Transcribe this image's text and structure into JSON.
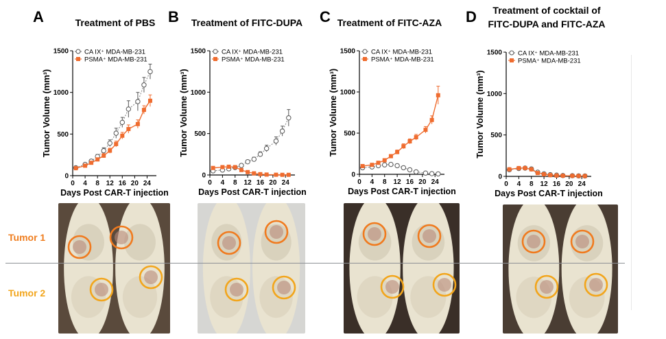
{
  "colors": {
    "orange": "#ef6c2f",
    "orange_ring": "#f07a1e",
    "yellow_ring": "#f2a51b",
    "gray_marker": "#8a8a8a",
    "tumor1_label": "#ef7d1e",
    "tumor2_label": "#f2a51b"
  },
  "panels": [
    {
      "letter": "A",
      "title_lines": [
        "Treatment of PBS"
      ]
    },
    {
      "letter": "B",
      "title_lines": [
        "Treatment of FITC-DUPA"
      ]
    },
    {
      "letter": "C",
      "title_lines": [
        "Treatment of FITC-AZA"
      ]
    },
    {
      "letter": "D",
      "title_lines": [
        "Treatment of cocktail of",
        "FITC-DUPA and FITC-AZA"
      ]
    }
  ],
  "tumor_labels": {
    "tumor1": "Tumor 1",
    "tumor2": "Tumor 2"
  },
  "chart_data": [
    {
      "type": "line",
      "title": "Treatment of PBS",
      "xlabel": "Days Post CAR-T injection",
      "ylabel": "Tumor Volume (mm³)",
      "xlim": [
        0,
        27
      ],
      "ylim": [
        0,
        1500
      ],
      "xticks": [
        0,
        4,
        8,
        12,
        16,
        20,
        24
      ],
      "yticks": [
        0,
        500,
        1000,
        1500
      ],
      "legend_position": "top-left",
      "series": [
        {
          "name": "CA IX⁺ MDA-MB-231",
          "marker": "open-circle",
          "line": "dotted",
          "x": [
            1,
            4,
            6,
            8,
            10,
            12,
            14,
            16,
            18,
            21,
            23,
            25
          ],
          "y": [
            95,
            135,
            175,
            230,
            300,
            390,
            510,
            640,
            800,
            890,
            1090,
            1250
          ],
          "err": [
            15,
            15,
            20,
            25,
            35,
            40,
            60,
            60,
            100,
            110,
            90,
            90
          ]
        },
        {
          "name": "PSMA⁺ MDA-MB-231",
          "marker": "filled-square",
          "line": "solid",
          "x": [
            1,
            4,
            6,
            8,
            10,
            12,
            14,
            16,
            18,
            21,
            23,
            25
          ],
          "y": [
            90,
            120,
            155,
            195,
            240,
            300,
            380,
            480,
            560,
            620,
            790,
            900
          ],
          "err": [
            10,
            15,
            15,
            20,
            25,
            30,
            35,
            40,
            50,
            50,
            50,
            70
          ]
        }
      ]
    },
    {
      "type": "line",
      "title": "Treatment of FITC-DUPA",
      "xlabel": "Days Post CAR-T injection",
      "ylabel": "Tumor Volume (mm³)",
      "xlim": [
        0,
        27
      ],
      "ylim": [
        0,
        1500
      ],
      "xticks": [
        0,
        4,
        8,
        12,
        16,
        20,
        24
      ],
      "yticks": [
        0,
        500,
        1000,
        1500
      ],
      "legend_position": "top-left",
      "series": [
        {
          "name": "CA IX⁺ MDA-MB-231",
          "marker": "open-circle",
          "line": "dotted",
          "x": [
            1,
            4,
            6,
            8,
            10,
            12,
            14,
            16,
            18,
            21,
            23,
            25
          ],
          "y": [
            50,
            60,
            75,
            90,
            115,
            160,
            190,
            250,
            320,
            410,
            530,
            690
          ],
          "err": [
            10,
            10,
            10,
            15,
            15,
            20,
            25,
            30,
            40,
            50,
            60,
            100
          ]
        },
        {
          "name": "PSMA⁺ MDA-MB-231",
          "marker": "filled-square",
          "line": "solid",
          "x": [
            1,
            4,
            6,
            8,
            10,
            12,
            14,
            16,
            18,
            21,
            23,
            25
          ],
          "y": [
            85,
            95,
            100,
            95,
            60,
            35,
            20,
            10,
            5,
            3,
            2,
            2
          ],
          "err": [
            10,
            10,
            10,
            10,
            8,
            5,
            4,
            3,
            2,
            1,
            1,
            1
          ]
        }
      ]
    },
    {
      "type": "line",
      "title": "Treatment of FITC-AZA",
      "xlabel": "Days Post CAR-T injection",
      "ylabel": "Tumor Volume (mm³)",
      "xlim": [
        0,
        27
      ],
      "ylim": [
        0,
        1500
      ],
      "xticks": [
        0,
        4,
        8,
        12,
        16,
        20,
        24
      ],
      "yticks": [
        0,
        500,
        1000,
        1500
      ],
      "legend_position": "top-left",
      "series": [
        {
          "name": "CA IX⁺ MDA-MB-231",
          "marker": "open-circle",
          "line": "dotted",
          "x": [
            1,
            4,
            6,
            8,
            10,
            12,
            14,
            16,
            18,
            21,
            23,
            25
          ],
          "y": [
            80,
            90,
            105,
            115,
            120,
            105,
            80,
            55,
            30,
            15,
            8,
            5
          ],
          "err": [
            10,
            10,
            10,
            10,
            10,
            10,
            8,
            6,
            5,
            3,
            2,
            2
          ]
        },
        {
          "name": "PSMA⁺ MDA-MB-231",
          "marker": "filled-square",
          "line": "solid",
          "x": [
            1,
            4,
            6,
            8,
            10,
            12,
            14,
            16,
            18,
            21,
            23,
            25
          ],
          "y": [
            100,
            115,
            140,
            170,
            220,
            270,
            340,
            400,
            450,
            540,
            660,
            960
          ],
          "err": [
            10,
            15,
            15,
            20,
            20,
            25,
            30,
            30,
            35,
            40,
            50,
            110
          ]
        }
      ]
    },
    {
      "type": "line",
      "title": "Treatment of cocktail of FITC-DUPA and FITC-AZA",
      "xlabel": "Days Post CAR-T injection",
      "ylabel": "Tumor Volume (mm³)",
      "xlim": [
        0,
        27
      ],
      "ylim": [
        0,
        1500
      ],
      "xticks": [
        0,
        4,
        8,
        12,
        16,
        20,
        24
      ],
      "yticks": [
        0,
        500,
        1000,
        1500
      ],
      "legend_position": "top-left",
      "series": [
        {
          "name": "CA IX⁺ MDA-MB-231",
          "marker": "open-circle",
          "line": "dotted",
          "x": [
            1,
            4,
            6,
            8,
            10,
            12,
            14,
            16,
            18,
            21,
            23,
            25
          ],
          "y": [
            80,
            95,
            100,
            90,
            50,
            30,
            20,
            15,
            10,
            8,
            6,
            5
          ],
          "err": [
            10,
            12,
            12,
            10,
            8,
            6,
            5,
            4,
            3,
            2,
            2,
            2
          ]
        },
        {
          "name": "PSMA⁺ MDA-MB-231",
          "marker": "filled-square",
          "line": "solid",
          "x": [
            1,
            4,
            6,
            8,
            10,
            12,
            14,
            16,
            18,
            21,
            23,
            25
          ],
          "y": [
            85,
            100,
            100,
            85,
            40,
            25,
            15,
            10,
            8,
            6,
            5,
            4
          ],
          "err": [
            10,
            12,
            12,
            10,
            8,
            6,
            5,
            4,
            3,
            2,
            2,
            2
          ]
        }
      ]
    }
  ]
}
